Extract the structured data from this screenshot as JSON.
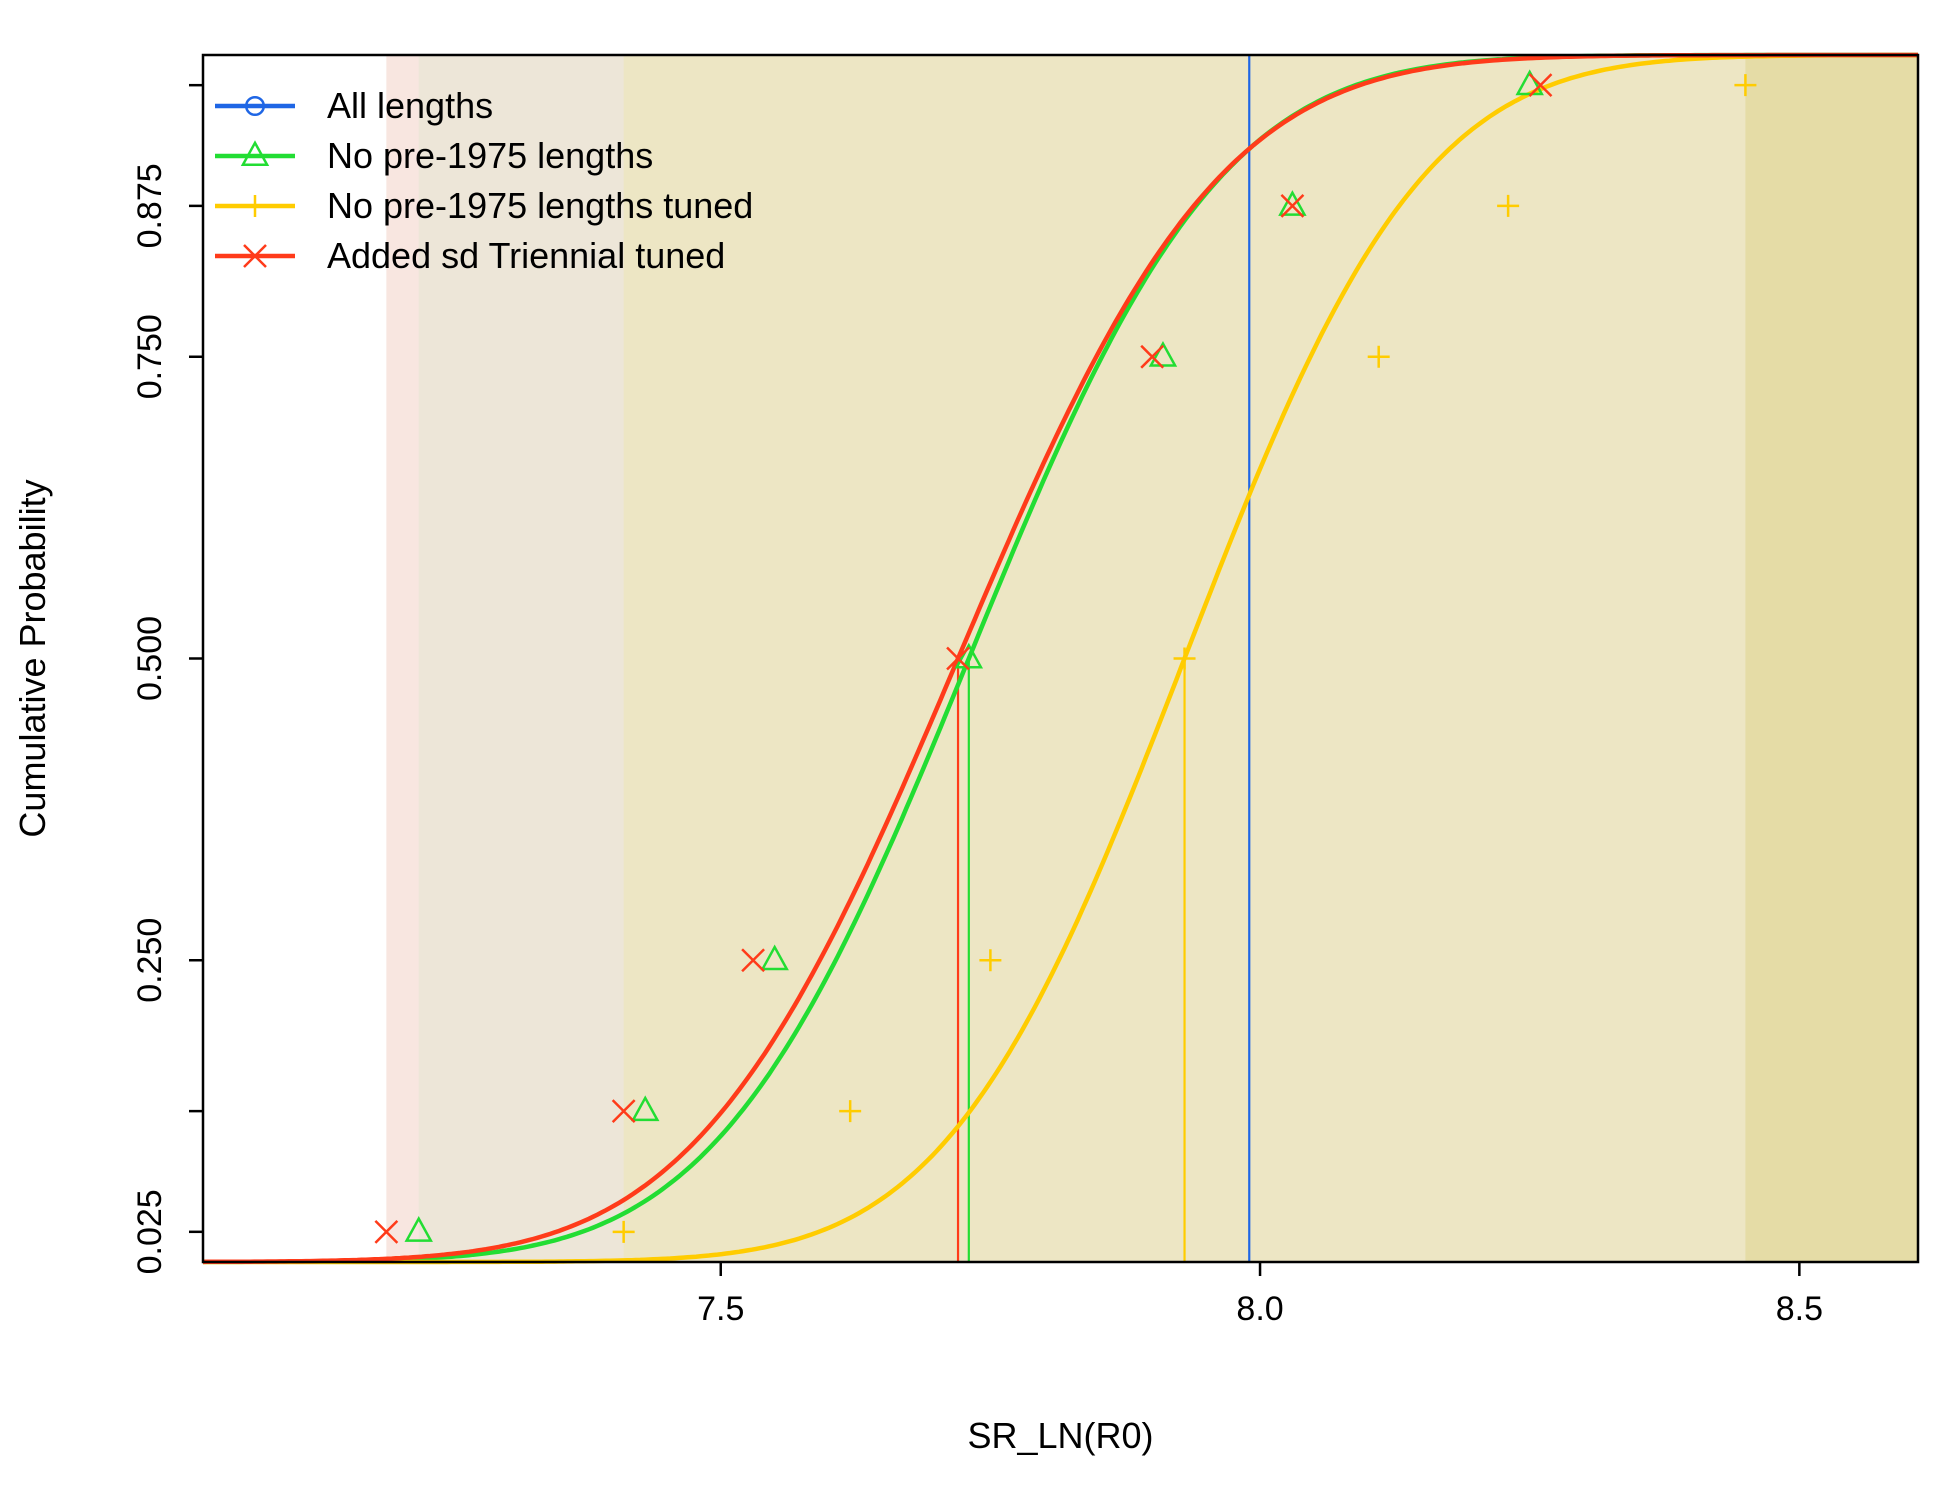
{
  "chart_data": {
    "type": "line",
    "title": "",
    "xlabel": "SR_LN(R0)",
    "ylabel": "Cumulative Probability",
    "xlim": [
      7.02,
      8.61
    ],
    "ylim": [
      0.0,
      1.0
    ],
    "x_ticks": [
      7.5,
      8.0,
      8.5
    ],
    "x_tick_labels": [
      "7.5",
      "8.0",
      "8.5"
    ],
    "y_ticks": [
      0.025,
      0.25,
      0.5,
      0.75,
      0.875
    ],
    "y_tick_labels": [
      "0.025",
      "0.250",
      "0.500",
      "0.750",
      "0.875"
    ],
    "y_minor_ticks": [
      0.125,
      0.975
    ],
    "legend_position": "top-left",
    "series": [
      {
        "name": "All lengths",
        "color": "#1f66e5",
        "marker": "circle",
        "shade": "#e0d7a0",
        "mean": 7.99,
        "sd": 0.001,
        "quantile_markers": []
      },
      {
        "name": "No pre-1975 lengths",
        "color": "#22dd33",
        "marker": "triangle",
        "shade": "#e3e6d2",
        "mean": 7.73,
        "sd": 0.183,
        "quantile_markers": [
          {
            "p": 0.025,
            "x": 7.22
          },
          {
            "p": 0.125,
            "x": 7.43
          },
          {
            "p": 0.25,
            "x": 7.55
          },
          {
            "p": 0.5,
            "x": 7.73
          },
          {
            "p": 0.75,
            "x": 7.91
          },
          {
            "p": 0.875,
            "x": 8.03
          },
          {
            "p": 0.975,
            "x": 8.25
          }
        ]
      },
      {
        "name": "No pre-1975 lengths tuned",
        "color": "#ffcc00",
        "marker": "plus",
        "shade": "#ece5b4",
        "mean": 7.93,
        "sd": 0.173,
        "quantile_markers": [
          {
            "p": 0.025,
            "x": 7.41
          },
          {
            "p": 0.125,
            "x": 7.62
          },
          {
            "p": 0.25,
            "x": 7.75
          },
          {
            "p": 0.5,
            "x": 7.93
          },
          {
            "p": 0.75,
            "x": 8.11
          },
          {
            "p": 0.875,
            "x": 8.23
          },
          {
            "p": 0.975,
            "x": 8.45
          }
        ]
      },
      {
        "name": "Added sd Triennial tuned",
        "color": "#ff3b1a",
        "marker": "x",
        "shade": "#f3d2c6",
        "mean": 7.72,
        "sd": 0.19,
        "quantile_markers": [
          {
            "p": 0.025,
            "x": 7.19
          },
          {
            "p": 0.125,
            "x": 7.41
          },
          {
            "p": 0.25,
            "x": 7.53
          },
          {
            "p": 0.5,
            "x": 7.72
          },
          {
            "p": 0.75,
            "x": 7.9
          },
          {
            "p": 0.875,
            "x": 8.03
          },
          {
            "p": 0.975,
            "x": 8.26
          }
        ]
      }
    ],
    "vertical_lines": [
      {
        "series": "All lengths",
        "x": 7.99
      },
      {
        "series": "No pre-1975 lengths",
        "x": 7.73
      },
      {
        "series": "No pre-1975 lengths tuned",
        "x": 7.93
      },
      {
        "series": "Added sd Triennial tuned",
        "x": 7.72
      }
    ],
    "shaded_regions": [
      {
        "series": "Added sd Triennial tuned",
        "from": 7.19,
        "to": 8.26
      },
      {
        "series": "No pre-1975 lengths",
        "from": 7.22,
        "to": 8.25
      },
      {
        "series": "No pre-1975 lengths tuned",
        "from": 7.41,
        "to": 8.45
      }
    ]
  }
}
